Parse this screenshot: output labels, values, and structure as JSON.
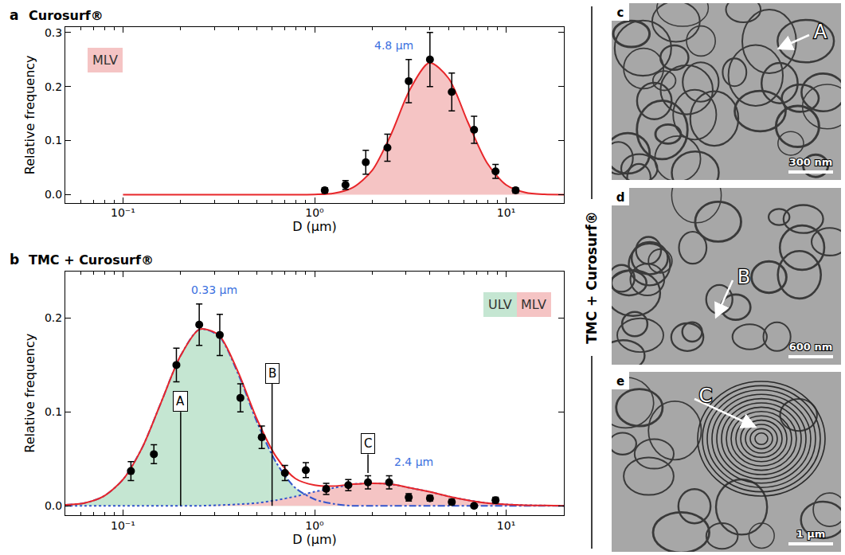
{
  "chart_data": [
    {
      "type": "scatter",
      "panel": "a",
      "title": "Curosurf®",
      "x_label": "D (μm)",
      "y_label": "Relative frequency",
      "log": "x",
      "grid": false,
      "legend": "top left",
      "xlim": [
        0.05,
        20
      ],
      "xticks": [
        {
          "value": 0.1,
          "label": "10⁻¹"
        },
        {
          "value": 1,
          "label": "10⁰"
        },
        {
          "value": 10,
          "label": "10¹"
        }
      ],
      "ylim": [
        -0.015,
        0.31
      ],
      "yticks": [
        {
          "value": 0,
          "label": "0.0"
        },
        {
          "value": 0.1,
          "label": "0.1"
        },
        {
          "value": 0.2,
          "label": "0.2"
        },
        {
          "value": 0.3,
          "label": "0.3"
        }
      ],
      "series": [
        {
          "name": "MLV",
          "type": "area",
          "color": "#f5c4c4",
          "x": [
            0.1,
            0.5,
            1.0,
            1.26,
            1.58,
            2.0,
            2.51,
            3.16,
            3.98,
            5.01,
            6.31,
            7.94,
            10,
            12.6,
            15.8,
            20
          ],
          "values": [
            0,
            0,
            0.0004,
            0.0026,
            0.013,
            0.045,
            0.112,
            0.196,
            0.244,
            0.215,
            0.134,
            0.059,
            0.018,
            0.004,
            0.0006,
            0
          ]
        },
        {
          "type": "line",
          "color": "#e8262a",
          "line_style": "solid",
          "x": [
            0.1,
            0.5,
            1.0,
            1.26,
            1.58,
            2.0,
            2.51,
            3.16,
            3.98,
            5.01,
            6.31,
            7.94,
            10,
            12.6,
            15.8,
            20
          ],
          "values": [
            0,
            0,
            0.0004,
            0.0026,
            0.013,
            0.045,
            0.112,
            0.196,
            0.244,
            0.215,
            0.134,
            0.059,
            0.018,
            0.004,
            0.0006,
            0
          ]
        },
        {
          "type": "scatter",
          "color": "#000000",
          "marker": "circle",
          "x": [
            1.13,
            1.45,
            1.85,
            2.4,
            3.1,
            4.0,
            5.2,
            6.8,
            8.8,
            11.2
          ],
          "values": [
            0.008,
            0.018,
            0.06,
            0.087,
            0.21,
            0.25,
            0.19,
            0.12,
            0.043,
            0.008
          ],
          "errors": [
            0.005,
            0.008,
            0.022,
            0.025,
            0.04,
            0.05,
            0.035,
            0.025,
            0.013,
            0.005
          ]
        }
      ],
      "annotations": [
        {
          "text": "4.8 μm",
          "x": 2.6,
          "y": 0.262,
          "color": "#3a6fe0"
        }
      ],
      "callouts": []
    },
    {
      "type": "scatter",
      "panel": "b",
      "title": "TMC + Curosurf®",
      "x_label": "D (μm)",
      "y_label": "Relative frequency",
      "log": "x",
      "grid": false,
      "legend": "top right",
      "xlim": [
        0.05,
        20
      ],
      "xticks": [
        {
          "value": 0.1,
          "label": "10⁻¹"
        },
        {
          "value": 1,
          "label": "10⁰"
        },
        {
          "value": 10,
          "label": "10¹"
        }
      ],
      "ylim": [
        -0.01,
        0.25
      ],
      "yticks": [
        {
          "value": 0,
          "label": "0.0"
        },
        {
          "value": 0.1,
          "label": "0.1"
        },
        {
          "value": 0.2,
          "label": "0.2"
        }
      ],
      "series": [
        {
          "name": "ULV",
          "type": "area",
          "color": "#c5e6d2",
          "x": [
            0.05,
            0.063,
            0.079,
            0.1,
            0.126,
            0.158,
            0.2,
            0.251,
            0.316,
            0.398,
            0.501,
            0.631,
            0.794,
            1.0,
            1.26,
            1.58,
            2.0,
            2.51,
            3.16,
            3.98,
            5.01,
            6.31,
            7.94,
            10,
            12.6,
            15.8,
            20
          ],
          "values": [
            0.001,
            0.003,
            0.01,
            0.028,
            0.062,
            0.11,
            0.16,
            0.188,
            0.181,
            0.141,
            0.089,
            0.046,
            0.019,
            0.007,
            0.002,
            0,
            0,
            0,
            0,
            0,
            0,
            0,
            0,
            0,
            0,
            0,
            0
          ]
        },
        {
          "name": "MLV",
          "type": "area",
          "color": "#f5c4c4",
          "x": [
            0.05,
            0.063,
            0.079,
            0.1,
            0.126,
            0.158,
            0.2,
            0.251,
            0.316,
            0.398,
            0.501,
            0.631,
            0.794,
            1.0,
            1.26,
            1.58,
            2.0,
            2.51,
            3.16,
            3.98,
            5.01,
            6.31,
            7.94,
            10,
            12.6,
            15.8,
            20
          ],
          "values": [
            0,
            0,
            0,
            0,
            0,
            0,
            0,
            0,
            0.0007,
            0.0016,
            0.003,
            0.006,
            0.01,
            0.015,
            0.019,
            0.023,
            0.024,
            0.023,
            0.019,
            0.015,
            0.01,
            0.006,
            0.003,
            0.0015,
            0.0007,
            0.0003,
            0
          ]
        },
        {
          "type": "line",
          "color": "#3355cc",
          "line_style": "dashdot",
          "x": [
            0.05,
            0.063,
            0.079,
            0.1,
            0.126,
            0.158,
            0.2,
            0.251,
            0.316,
            0.398,
            0.501,
            0.631,
            0.794,
            1.0,
            1.26,
            1.58,
            2.0,
            2.51,
            3.16,
            3.98,
            5.01,
            6.31,
            7.94,
            10,
            12.6,
            15.8,
            20
          ],
          "values": [
            0.001,
            0.003,
            0.01,
            0.028,
            0.062,
            0.11,
            0.16,
            0.188,
            0.181,
            0.141,
            0.089,
            0.046,
            0.019,
            0.007,
            0.002,
            0,
            0,
            0,
            0,
            0,
            0,
            0,
            0,
            0,
            0,
            0,
            0
          ]
        },
        {
          "type": "line",
          "color": "#3355cc",
          "line_style": "dot",
          "x": [
            0.05,
            0.063,
            0.079,
            0.1,
            0.126,
            0.158,
            0.2,
            0.251,
            0.316,
            0.398,
            0.501,
            0.631,
            0.794,
            1.0,
            1.26,
            1.58,
            2.0,
            2.51,
            3.16,
            3.98,
            5.01,
            6.31,
            7.94,
            10,
            12.6,
            15.8,
            20
          ],
          "values": [
            0,
            0,
            0,
            0,
            0,
            0,
            0,
            0,
            0.0007,
            0.0016,
            0.003,
            0.006,
            0.01,
            0.015,
            0.019,
            0.023,
            0.024,
            0.023,
            0.019,
            0.015,
            0.01,
            0.006,
            0.003,
            0.0015,
            0.0007,
            0.0003,
            0
          ]
        },
        {
          "type": "line",
          "color": "#e8262a",
          "line_style": "solid",
          "x": [
            0.05,
            0.063,
            0.079,
            0.1,
            0.126,
            0.158,
            0.2,
            0.251,
            0.316,
            0.398,
            0.501,
            0.631,
            0.794,
            1.0,
            1.26,
            1.58,
            2.0,
            2.51,
            3.16,
            3.98,
            5.01,
            6.31,
            7.94,
            10,
            12.6,
            15.8,
            20
          ],
          "values": [
            0.001,
            0.003,
            0.01,
            0.028,
            0.062,
            0.11,
            0.16,
            0.188,
            0.182,
            0.143,
            0.092,
            0.052,
            0.029,
            0.022,
            0.021,
            0.023,
            0.024,
            0.023,
            0.019,
            0.015,
            0.01,
            0.006,
            0.003,
            0.0015,
            0.0007,
            0.0003,
            0
          ]
        },
        {
          "type": "scatter",
          "color": "#000000",
          "marker": "circle",
          "x": [
            0.11,
            0.145,
            0.19,
            0.25,
            0.32,
            0.41,
            0.53,
            0.7,
            0.9,
            1.15,
            1.5,
            1.9,
            2.45,
            3.1,
            4.0,
            5.2,
            6.8,
            8.8
          ],
          "values": [
            0.037,
            0.055,
            0.15,
            0.193,
            0.182,
            0.115,
            0.073,
            0.035,
            0.038,
            0.018,
            0.022,
            0.025,
            0.025,
            0.009,
            0.008,
            0.004,
            0.0,
            0.006
          ],
          "errors": [
            0.01,
            0.01,
            0.018,
            0.022,
            0.022,
            0.015,
            0.012,
            0.008,
            0.008,
            0.006,
            0.006,
            0.007,
            0.007,
            0.004,
            0.003,
            0.003,
            0.002,
            0.003
          ]
        }
      ],
      "annotations": [
        {
          "text": "0.33 μm",
          "x": 0.3,
          "y": 0.222,
          "color": "#3a6fe0"
        },
        {
          "text": "2.4 μm",
          "x": 3.3,
          "y": 0.038,
          "color": "#3a6fe0"
        }
      ],
      "callouts": [
        {
          "text": "A",
          "x": 0.2,
          "y": 0.1,
          "from_y": 0
        },
        {
          "text": "B",
          "x": 0.6,
          "y": 0.13,
          "from_y": 0
        },
        {
          "text": "C",
          "x": 1.9,
          "y": 0.055,
          "from_y": 0.035
        }
      ]
    }
  ],
  "side_label": "TMC + Curosurf®",
  "images": [
    {
      "letter": "c",
      "label": "A",
      "scale_bar": "300 nm"
    },
    {
      "letter": "d",
      "label": "B",
      "scale_bar": "600 nm"
    },
    {
      "letter": "e",
      "label": "C",
      "scale_bar": "1 μm"
    }
  ]
}
